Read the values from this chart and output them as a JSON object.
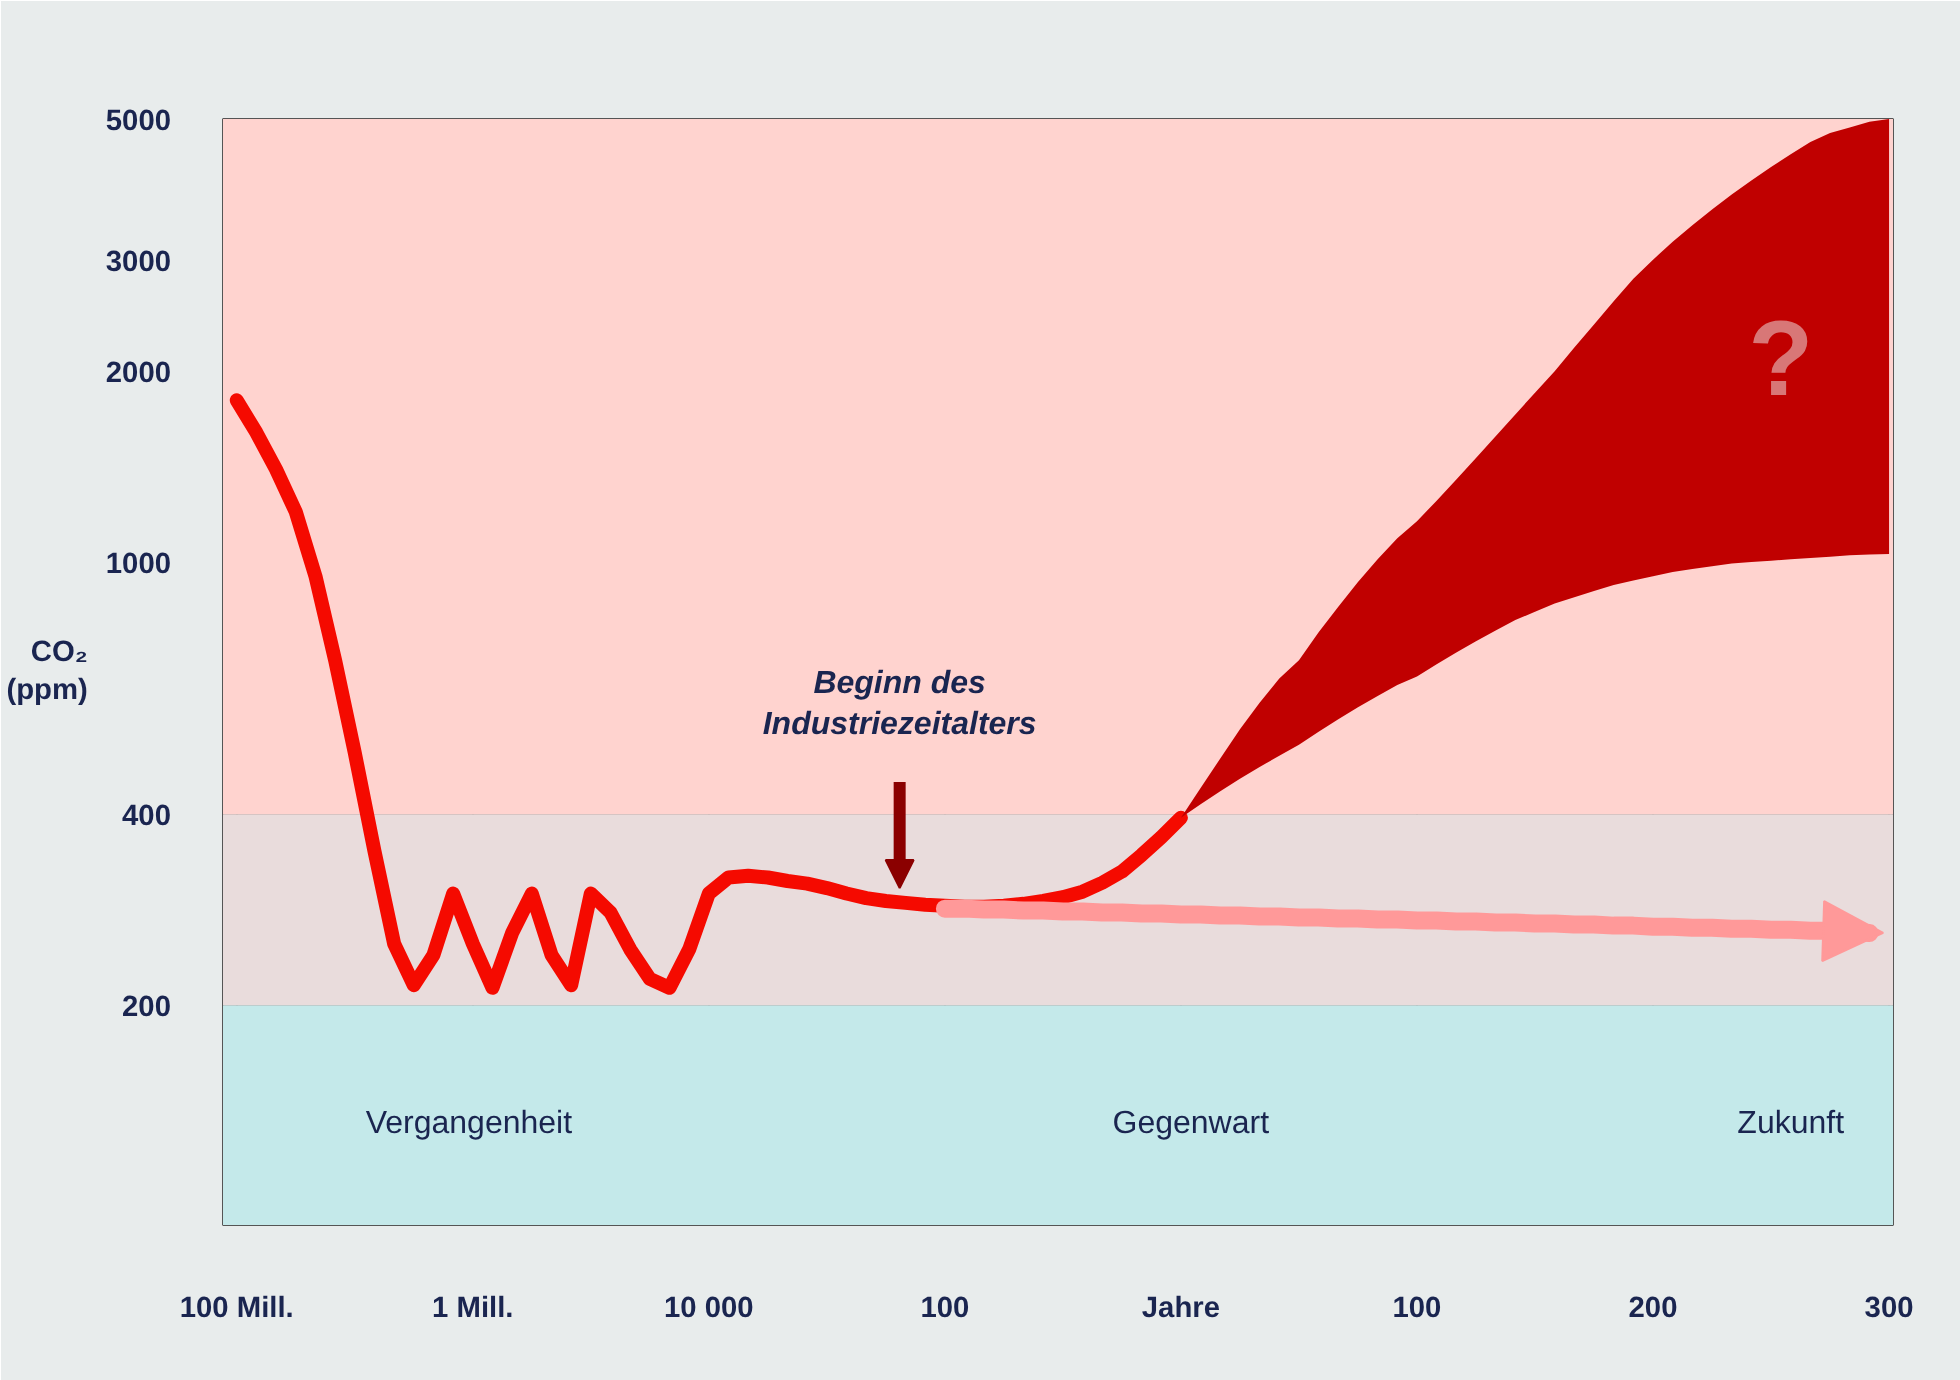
{
  "chart_data": {
    "type": "line",
    "ylabel": "CO₂ (ppm)",
    "log": "y",
    "categories": [
      "100 Mill.",
      null,
      null,
      null,
      null,
      null,
      null,
      null,
      null,
      null,
      null,
      null,
      "1 Mill.",
      null,
      null,
      null,
      null,
      null,
      null,
      null,
      null,
      null,
      null,
      null,
      "10 000",
      null,
      null,
      null,
      null,
      null,
      null,
      null,
      null,
      null,
      null,
      null,
      "100",
      null,
      null,
      null,
      null,
      null,
      null,
      null,
      null,
      null,
      null,
      null,
      "Jahre",
      null,
      null,
      null,
      null,
      null,
      null,
      null,
      null,
      null,
      null,
      null,
      "100",
      null,
      null,
      null,
      null,
      null,
      null,
      null,
      null,
      null,
      null,
      null,
      "200",
      null,
      null,
      null,
      null,
      null,
      null,
      null,
      null,
      null,
      null,
      null,
      "300"
    ],
    "ylim": [
      90,
      5000
    ],
    "yticks": [
      200,
      400,
      1000,
      2000,
      3000,
      5000
    ],
    "grid": true,
    "bands": [
      {
        "axis": "y",
        "from": 90,
        "to": 200,
        "color": "#c4e9ea"
      },
      {
        "axis": "y",
        "from": 200,
        "to": 400,
        "color": "#e9dcdc"
      },
      {
        "axis": "y",
        "from": 400,
        "to": 5000,
        "color": "#ffd3cf"
      }
    ],
    "series": [
      {
        "color": "#f50a00",
        "values": [
          1800,
          1600,
          1400,
          1200,
          950,
          700,
          500,
          350,
          250,
          215,
          240,
          300,
          250,
          213,
          260,
          300,
          240,
          215,
          300,
          280,
          245,
          220,
          213,
          245,
          300,
          318,
          320,
          318,
          314,
          311,
          306,
          300,
          295,
          292,
          290,
          288,
          287,
          286,
          286,
          287,
          289,
          292,
          296,
          302,
          312,
          325,
          345,
          368,
          395,
          null,
          null,
          null,
          null,
          null,
          null,
          null,
          null,
          null,
          null,
          null,
          null,
          null,
          null,
          null,
          null,
          null,
          null,
          null,
          null,
          null,
          null,
          null,
          null,
          null,
          null,
          null,
          null,
          null,
          null,
          null,
          null,
          null,
          null,
          null,
          null
        ]
      },
      {
        "type": "area",
        "color": "#c00000",
        "values": [
          null,
          null,
          null,
          null,
          null,
          null,
          null,
          null,
          null,
          null,
          null,
          null,
          null,
          null,
          null,
          null,
          null,
          null,
          null,
          null,
          null,
          null,
          null,
          null,
          null,
          null,
          null,
          null,
          null,
          null,
          null,
          null,
          null,
          null,
          null,
          null,
          null,
          null,
          null,
          null,
          null,
          null,
          null,
          null,
          null,
          null,
          null,
          null,
          null,
          null,
          null,
          null,
          null,
          null,
          null,
          null,
          null,
          null,
          null,
          null,
          null,
          null,
          null,
          null,
          null,
          null,
          null,
          null,
          null,
          null,
          null,
          null,
          null,
          null,
          null,
          null,
          null,
          null,
          null,
          null,
          null,
          null,
          null,
          null,
          null
        ],
        "lower": [
          null,
          null,
          null,
          null,
          null,
          null,
          null,
          null,
          null,
          null,
          null,
          null,
          null,
          null,
          null,
          null,
          null,
          null,
          null,
          null,
          null,
          null,
          null,
          null,
          null,
          null,
          null,
          null,
          null,
          null,
          null,
          null,
          null,
          null,
          null,
          null,
          null,
          null,
          null,
          null,
          null,
          null,
          null,
          null,
          null,
          null,
          null,
          null,
          395,
          415,
          435,
          455,
          475,
          495,
          515,
          540,
          565,
          590,
          615,
          640,
          660,
          690,
          720,
          750,
          780,
          810,
          835,
          860,
          880,
          900,
          920,
          935,
          950,
          965,
          975,
          985,
          995,
          1000,
          1005,
          1010,
          1015,
          1020,
          1025,
          1028,
          1030
        ],
        "upper": [
          null,
          null,
          null,
          null,
          null,
          null,
          null,
          null,
          null,
          null,
          null,
          null,
          null,
          null,
          null,
          null,
          null,
          null,
          null,
          null,
          null,
          null,
          null,
          null,
          null,
          null,
          null,
          null,
          null,
          null,
          null,
          null,
          null,
          null,
          null,
          null,
          null,
          null,
          null,
          null,
          null,
          null,
          null,
          null,
          null,
          null,
          null,
          null,
          395,
          440,
          490,
          545,
          600,
          655,
          700,
          775,
          850,
          930,
          1010,
          1090,
          1160,
          1250,
          1350,
          1460,
          1580,
          1710,
          1850,
          2000,
          2180,
          2370,
          2580,
          2800,
          3000,
          3200,
          3400,
          3600,
          3800,
          4000,
          4200,
          4400,
          4600,
          4750,
          4850,
          4950,
          5000
        ]
      },
      {
        "color": "#ff9999",
        "values": [
          null,
          null,
          null,
          null,
          null,
          null,
          null,
          null,
          null,
          null,
          null,
          null,
          null,
          null,
          null,
          null,
          null,
          null,
          null,
          null,
          null,
          null,
          null,
          null,
          null,
          null,
          null,
          null,
          null,
          null,
          null,
          null,
          null,
          null,
          null,
          null,
          284,
          284,
          283,
          283,
          282,
          282,
          281,
          281,
          280,
          280,
          279,
          279,
          278,
          278,
          277,
          277,
          276,
          276,
          275,
          275,
          274,
          274,
          273,
          273,
          272,
          272,
          271,
          271,
          270,
          270,
          269,
          269,
          268,
          268,
          267,
          267,
          266,
          266,
          265,
          265,
          264,
          264,
          263,
          263,
          262,
          262,
          261,
          260,
          null
        ]
      }
    ],
    "annotations": [
      {
        "text": "Beginn des Industriezeitalters",
        "y": 300
      },
      "?",
      "Vergangenheit",
      "Gegenwart",
      "Zukunft"
    ]
  }
}
